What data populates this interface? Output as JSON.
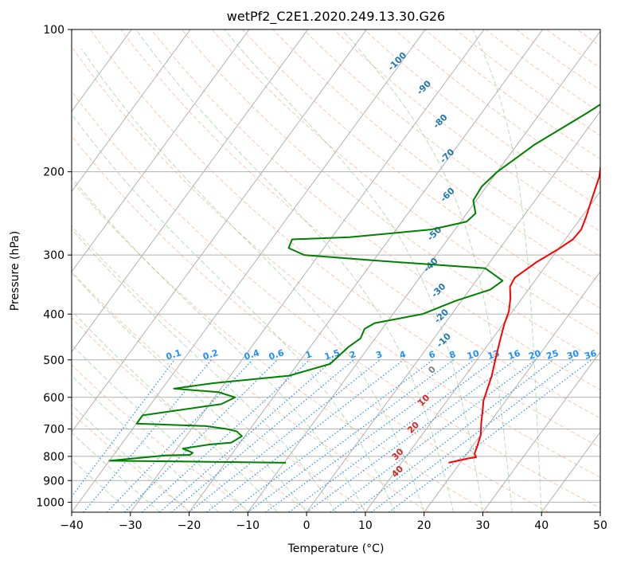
{
  "chart_data": {
    "type": "line",
    "chart_kind": "skew-t log-p",
    "title": "wetPf2_C2E1.2020.249.13.30.G26",
    "xlabel": "Temperature (°C)",
    "ylabel": "Pressure (hPa)",
    "xlim": [
      -40,
      50
    ],
    "ylim": [
      1050,
      100
    ],
    "y_scale": "log",
    "grid": true,
    "x_ticks": [
      -40,
      -30,
      -20,
      -10,
      0,
      10,
      20,
      30,
      40,
      50
    ],
    "y_ticks": [
      100,
      200,
      300,
      400,
      500,
      600,
      700,
      800,
      900,
      1000
    ],
    "series": [
      {
        "kind": "temperature",
        "color": "#ff0000",
        "points": [
          [
            18.0,
            825
          ],
          [
            20.8,
            808
          ],
          [
            22.0,
            803
          ],
          [
            21.3,
            790
          ],
          [
            20.8,
            760
          ],
          [
            20.0,
            720
          ],
          [
            18.6,
            680
          ],
          [
            17.3,
            640
          ],
          [
            16.2,
            610
          ],
          [
            15.5,
            580
          ],
          [
            14.5,
            540
          ],
          [
            13.3,
            505
          ],
          [
            11.7,
            460
          ],
          [
            10.2,
            420
          ],
          [
            9.4,
            395
          ],
          [
            8.0,
            370
          ],
          [
            6.5,
            350
          ],
          [
            6.2,
            335
          ],
          [
            8.0,
            310
          ],
          [
            10.0,
            292
          ],
          [
            11.3,
            278
          ],
          [
            11.5,
            265
          ],
          [
            10.8,
            250
          ],
          [
            9.6,
            230
          ],
          [
            8.0,
            205
          ],
          [
            5.5,
            182
          ],
          [
            4.0,
            168
          ],
          [
            4.5,
            155
          ],
          [
            5.7,
            147
          ],
          [
            6.0,
            140
          ],
          [
            6.7,
            128
          ],
          [
            7.6,
            120
          ],
          [
            9.0,
            110
          ],
          [
            10.5,
            100
          ]
        ]
      },
      {
        "kind": "dewpoint",
        "color": "#008000",
        "points": [
          [
            -9.7,
            825
          ],
          [
            -28.0,
            820
          ],
          [
            -40.0,
            817
          ],
          [
            -31.0,
            796
          ],
          [
            -27.0,
            794
          ],
          [
            -26.8,
            786
          ],
          [
            -29.0,
            770
          ],
          [
            -25.0,
            755
          ],
          [
            -21.5,
            748
          ],
          [
            -20.5,
            725
          ],
          [
            -22.0,
            708
          ],
          [
            -24.0,
            700
          ],
          [
            -28.0,
            690
          ],
          [
            -40.0,
            682
          ],
          [
            -40.0,
            655
          ],
          [
            -28.0,
            620
          ],
          [
            -26.5,
            600
          ],
          [
            -30.0,
            585
          ],
          [
            -38.0,
            575
          ],
          [
            -32.0,
            560
          ],
          [
            -20.0,
            540
          ],
          [
            -14.5,
            510
          ],
          [
            -13.5,
            470
          ],
          [
            -12.5,
            450
          ],
          [
            -13.0,
            430
          ],
          [
            -12.0,
            418
          ],
          [
            -5.0,
            400
          ],
          [
            -1.0,
            375
          ],
          [
            3.5,
            355
          ],
          [
            4.5,
            340
          ],
          [
            0.0,
            320
          ],
          [
            -20.0,
            308
          ],
          [
            -32.5,
            300
          ],
          [
            -36.0,
            290
          ],
          [
            -36.5,
            278
          ],
          [
            -27.0,
            275
          ],
          [
            -14.0,
            265
          ],
          [
            -9.0,
            255
          ],
          [
            -8.5,
            245
          ],
          [
            -10.5,
            230
          ],
          [
            -10.8,
            215
          ],
          [
            -10.0,
            200
          ],
          [
            -7.0,
            175
          ],
          [
            -2.0,
            150
          ],
          [
            1.0,
            135
          ],
          [
            3.0,
            120
          ],
          [
            4.5,
            108
          ],
          [
            6.0,
            100
          ]
        ]
      }
    ],
    "isotherm_color": "#aaaaaa",
    "dry_adiabat_color": "#ff8c60",
    "moist_adiabat_color": "#5cb85c",
    "mixing_ratio_color": "#1e90ff",
    "dry_adiabat_labels": [
      {
        "text": "-100",
        "color": "#1f77b4",
        "x": -40.2,
        "p": 118
      },
      {
        "text": "-90",
        "color": "#1f77b4",
        "x": -32.4,
        "p": 134
      },
      {
        "text": "-80",
        "color": "#1f77b4",
        "x": -25.4,
        "p": 158
      },
      {
        "text": "-70",
        "color": "#1f77b4",
        "x": -19.9,
        "p": 187
      },
      {
        "text": "-60",
        "color": "#1f77b4",
        "x": -15.0,
        "p": 226
      },
      {
        "text": "-50",
        "color": "#1f77b4",
        "x": -12.4,
        "p": 273
      },
      {
        "text": "-40",
        "color": "#1f77b4",
        "x": -9.1,
        "p": 318
      },
      {
        "text": "-30",
        "color": "#1f77b4",
        "x": -4.6,
        "p": 360
      },
      {
        "text": "-20",
        "color": "#1f77b4",
        "x": -0.9,
        "p": 408
      },
      {
        "text": "-10",
        "color": "#1f77b4",
        "x": 2.5,
        "p": 459
      },
      {
        "text": "0",
        "color": "#808080",
        "x": 4.2,
        "p": 530
      },
      {
        "text": "10",
        "color": "#d62728",
        "x": 6.6,
        "p": 615
      },
      {
        "text": "20",
        "color": "#d62728",
        "x": 8.2,
        "p": 702
      },
      {
        "text": "30",
        "color": "#d62728",
        "x": 8.9,
        "p": 800
      },
      {
        "text": "40",
        "color": "#d62728",
        "x": 11.0,
        "p": 870
      }
    ],
    "mixing_ratio_lines": [
      {
        "text": "0.1",
        "x_bottom": -42,
        "x_top": -22.5
      },
      {
        "text": "0.2",
        "x_bottom": -38,
        "x_top": -16.2
      },
      {
        "text": "0.4",
        "x_bottom": -34,
        "x_top": -9.2
      },
      {
        "text": "0.6",
        "x_bottom": -31,
        "x_top": -5.0
      },
      {
        "text": "1",
        "x_bottom": -28,
        "x_top": 0.5
      },
      {
        "text": "1.5",
        "x_bottom": -25,
        "x_top": 4.5
      },
      {
        "text": "2",
        "x_bottom": -23,
        "x_top": 8.0
      },
      {
        "text": "3",
        "x_bottom": -20,
        "x_top": 12.5
      },
      {
        "text": "4",
        "x_bottom": -17,
        "x_top": 16.5
      },
      {
        "text": "6",
        "x_bottom": -13,
        "x_top": 21.5
      },
      {
        "text": "8",
        "x_bottom": -10,
        "x_top": 25.0
      },
      {
        "text": "10",
        "x_bottom": -7,
        "x_top": 28.5
      },
      {
        "text": "13",
        "x_bottom": -3,
        "x_top": 32.0
      },
      {
        "text": "16",
        "x_bottom": 0,
        "x_top": 35.5
      },
      {
        "text": "20",
        "x_bottom": 4,
        "x_top": 39.0
      },
      {
        "text": "25",
        "x_bottom": 8,
        "x_top": 42.0
      },
      {
        "text": "30",
        "x_bottom": 11,
        "x_top": 45.5
      },
      {
        "text": "36",
        "x_bottom": 14,
        "x_top": 48.5
      }
    ]
  }
}
